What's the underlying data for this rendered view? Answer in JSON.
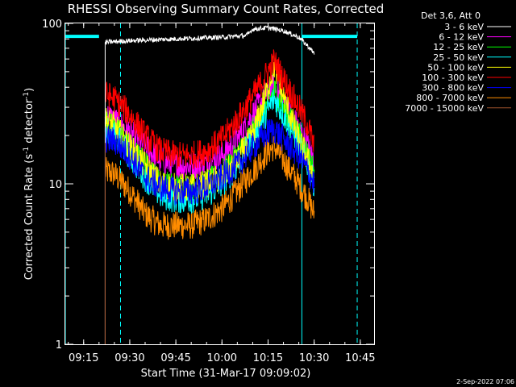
{
  "chart_data": {
    "type": "line",
    "title": "RHESSI Observing Summary Count Rates, Corrected",
    "xlabel": "Start Time (31-Mar-17 09:09:02)",
    "ylabel_main": "Corrected Count Rate (s",
    "ylabel_sup1": "-1",
    "ylabel_mid": " detector",
    "ylabel_sup2": "-1",
    "ylabel_end": ")",
    "yscale": "log",
    "ylim": [
      1,
      100
    ],
    "xlim": [
      "09:09:02",
      "10:49:30"
    ],
    "x_ticks": [
      "09:15",
      "09:30",
      "09:45",
      "10:00",
      "10:15",
      "10:30",
      "10:45"
    ],
    "y_ticks": [
      "1",
      "10",
      "100"
    ],
    "legend_title": "Det 3,6, Att 0",
    "legend_position": "top-right",
    "footer_date": "2-Sep-2022 07:06",
    "series": [
      {
        "name": "3 - 6 keV",
        "color": "#ffffff",
        "start": "09:22",
        "end": "10:30",
        "x": [
          "09:22",
          "09:25",
          "09:30",
          "09:45",
          "10:00",
          "10:08",
          "10:10",
          "10:15",
          "10:20",
          "10:25",
          "10:28",
          "10:30"
        ],
        "y": [
          76,
          77,
          78,
          80,
          82,
          84,
          92,
          94,
          90,
          82,
          72,
          65
        ]
      },
      {
        "name": "6 - 12 keV",
        "color": "#ff00ff",
        "start": "09:22",
        "end": "10:30",
        "x": [
          "09:22",
          "09:25",
          "09:30",
          "09:35",
          "09:40",
          "09:45",
          "09:50",
          "09:55",
          "10:00",
          "10:05",
          "10:10",
          "10:15",
          "10:17",
          "10:20",
          "10:25",
          "10:28",
          "10:30"
        ],
        "y": [
          27,
          25,
          21,
          17,
          14,
          13,
          13,
          13.5,
          15,
          19,
          27,
          38,
          40,
          33,
          22,
          17,
          14
        ]
      },
      {
        "name": "12 - 25 keV",
        "color": "#00ff00",
        "start": "09:22",
        "end": "10:30",
        "x": [
          "09:22",
          "09:25",
          "09:30",
          "09:35",
          "09:40",
          "09:45",
          "09:50",
          "09:55",
          "10:00",
          "10:05",
          "10:10",
          "10:15",
          "10:17",
          "10:20",
          "10:25",
          "10:28",
          "10:30"
        ],
        "y": [
          24,
          22,
          17,
          13,
          10,
          9.5,
          9.5,
          10,
          11.5,
          15,
          21,
          32,
          38,
          30,
          20,
          15,
          12
        ]
      },
      {
        "name": "25 - 50 keV",
        "color": "#00ffff",
        "start": "09:22",
        "end": "10:30",
        "x": [
          "09:22",
          "09:25",
          "09:30",
          "09:35",
          "09:40",
          "09:45",
          "09:50",
          "09:55",
          "10:00",
          "10:05",
          "10:10",
          "10:15",
          "10:17",
          "10:20",
          "10:25",
          "10:28",
          "10:30"
        ],
        "y": [
          22,
          20,
          15,
          11,
          8.5,
          8,
          8,
          8.5,
          10,
          13,
          19,
          29,
          34,
          27,
          18,
          13,
          10
        ]
      },
      {
        "name": "50 - 100 keV",
        "color": "#ffff00",
        "start": "09:22",
        "end": "10:30",
        "x": [
          "09:22",
          "09:25",
          "09:30",
          "09:35",
          "09:40",
          "09:45",
          "09:50",
          "09:55",
          "10:00",
          "10:05",
          "10:10",
          "10:15",
          "10:17",
          "10:20",
          "10:25",
          "10:28",
          "10:30"
        ],
        "y": [
          25,
          23,
          17,
          13,
          10,
          9.5,
          9.5,
          10,
          11,
          14,
          20,
          40,
          55,
          35,
          19,
          14,
          11
        ]
      },
      {
        "name": "100 - 300 keV",
        "color": "#ff0000",
        "start": "09:22",
        "end": "10:30",
        "x": [
          "09:22",
          "09:25",
          "09:30",
          "09:35",
          "09:40",
          "09:45",
          "09:50",
          "09:55",
          "10:00",
          "10:05",
          "10:10",
          "10:15",
          "10:17",
          "10:20",
          "10:25",
          "10:28",
          "10:30"
        ],
        "y": [
          36,
          34,
          27,
          20,
          16,
          15,
          15,
          16,
          19,
          25,
          35,
          50,
          58,
          45,
          30,
          23,
          17
        ]
      },
      {
        "name": "300 - 800 keV",
        "color": "#0000ff",
        "start": "09:22",
        "end": "10:30",
        "x": [
          "09:22",
          "09:25",
          "09:30",
          "09:35",
          "09:40",
          "09:45",
          "09:50",
          "09:55",
          "10:00",
          "10:05",
          "10:10",
          "10:15",
          "10:17",
          "10:20",
          "10:25",
          "10:28",
          "10:30"
        ],
        "y": [
          19,
          18.5,
          15,
          11,
          9.5,
          9,
          9,
          9.5,
          11,
          13,
          17,
          21,
          22,
          19,
          15,
          12,
          10
        ]
      },
      {
        "name": "800 - 7000 keV",
        "color": "#ff8c00",
        "start": "09:22",
        "end": "10:30",
        "x": [
          "09:22",
          "09:25",
          "09:30",
          "09:35",
          "09:40",
          "09:45",
          "09:50",
          "09:55",
          "10:00",
          "10:05",
          "10:10",
          "10:15",
          "10:17",
          "10:20",
          "10:25",
          "10:28",
          "10:30"
        ],
        "y": [
          12,
          11.5,
          9,
          6.5,
          5.5,
          5.5,
          5.5,
          6,
          7,
          9,
          12,
          16,
          17,
          14,
          10,
          8,
          6.5
        ]
      },
      {
        "name": "7000 - 15000 keV",
        "color": "#a0522d",
        "start": "09:22",
        "end": "09:22",
        "x": [],
        "y": []
      }
    ],
    "annotations": {
      "cyan_bar_left": [
        "09:09:02",
        "09:20"
      ],
      "cyan_bar_right": [
        "10:26",
        "10:44"
      ],
      "cyan_solid_vlines": [
        "09:09:02",
        "10:26"
      ],
      "cyan_dashed_vlines": [
        "09:27",
        "10:44"
      ]
    }
  }
}
